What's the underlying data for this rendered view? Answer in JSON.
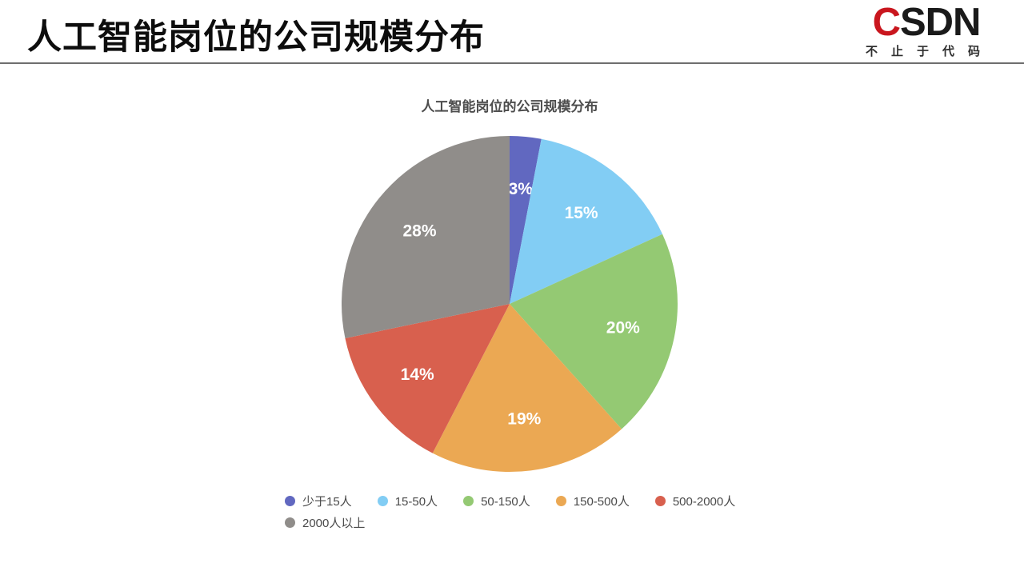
{
  "header": {
    "title": "人工智能岗位的公司规模分布"
  },
  "logo": {
    "mark_c": "C",
    "mark_rest": "SDN",
    "tagline": "不止于代码",
    "red": "#c9161e",
    "dark": "#1a1a1a"
  },
  "chart_data": {
    "type": "pie",
    "title": "人工智能岗位的公司规模分布",
    "categories": [
      "少于15人",
      "15-50人",
      "50-150人",
      "150-500人",
      "500-2000人",
      "2000人以上"
    ],
    "values": [
      3,
      15,
      20,
      19,
      14,
      28
    ],
    "percent_labels": [
      "3%",
      "15%",
      "20%",
      "19%",
      "14%",
      "28%"
    ],
    "colors": [
      "#6168c0",
      "#82cdf4",
      "#94c973",
      "#eba853",
      "#d8604e",
      "#908d8a"
    ],
    "slice_label_color": "#ffffff",
    "start_angle": "top",
    "direction": "clockwise",
    "legend_position": "bottom"
  }
}
